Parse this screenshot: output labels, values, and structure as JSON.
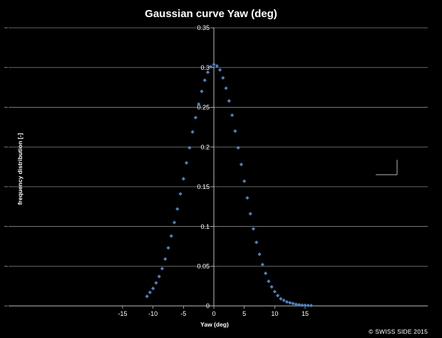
{
  "chart_data": {
    "type": "scatter",
    "title": "Gaussian curve Yaw (deg)",
    "xlabel": "Yaw (deg)",
    "ylabel": "frequency distribution [-]",
    "xlim": [
      -15,
      15
    ],
    "ylim": [
      0,
      0.35
    ],
    "x_ticks": [
      -15,
      -10,
      -5,
      0,
      5,
      10,
      15
    ],
    "y_ticks": [
      0,
      0.05,
      0.1,
      0.15,
      0.2,
      0.25,
      0.3,
      0.35
    ],
    "x_tick_labels": [
      "-15",
      "-10",
      "-5",
      "0",
      "5",
      "10",
      "15"
    ],
    "y_tick_labels": [
      "0",
      "0.05",
      "0.1",
      "0.15",
      "0.2",
      "0.25",
      "0.3",
      "0.35"
    ],
    "grid": "horizontal",
    "marker": "diamond",
    "series_color": "#4f81bd",
    "background_color": "#000000",
    "series": [
      {
        "x": [
          -11.0,
          -10.5,
          -10.0,
          -9.5,
          -9.0,
          -8.5,
          -8.0,
          -7.5,
          -7.0,
          -6.5,
          -6.0,
          -5.5,
          -5.0,
          -4.5,
          -4.0,
          -3.5,
          -3.0,
          -2.5,
          -2.0,
          -1.5,
          -1.0,
          -0.5,
          0.0,
          0.5,
          1.0,
          1.5,
          2.0,
          2.5,
          3.0,
          3.5,
          4.0,
          4.5,
          5.0,
          5.5,
          6.0,
          6.5,
          7.0,
          7.5,
          8.0,
          8.5,
          9.0,
          9.5,
          10.0,
          10.5,
          11.0,
          11.5,
          12.0,
          12.5,
          13.0,
          13.5,
          14.0,
          14.5,
          15.0,
          15.5,
          16.0
        ],
        "y": [
          0.012,
          0.017,
          0.022,
          0.029,
          0.037,
          0.047,
          0.059,
          0.073,
          0.088,
          0.105,
          0.122,
          0.141,
          0.16,
          0.18,
          0.199,
          0.219,
          0.237,
          0.254,
          0.27,
          0.284,
          0.294,
          0.301,
          0.304,
          0.302,
          0.297,
          0.287,
          0.274,
          0.258,
          0.24,
          0.22,
          0.199,
          0.178,
          0.157,
          0.136,
          0.116,
          0.097,
          0.08,
          0.065,
          0.052,
          0.041,
          0.031,
          0.024,
          0.018,
          0.013,
          0.009,
          0.007,
          0.005,
          0.004,
          0.003,
          0.002,
          0.0015,
          0.001,
          0.0008,
          0.0006,
          0.0005
        ]
      }
    ]
  },
  "watermark": "© SWISS SIDE 2015"
}
